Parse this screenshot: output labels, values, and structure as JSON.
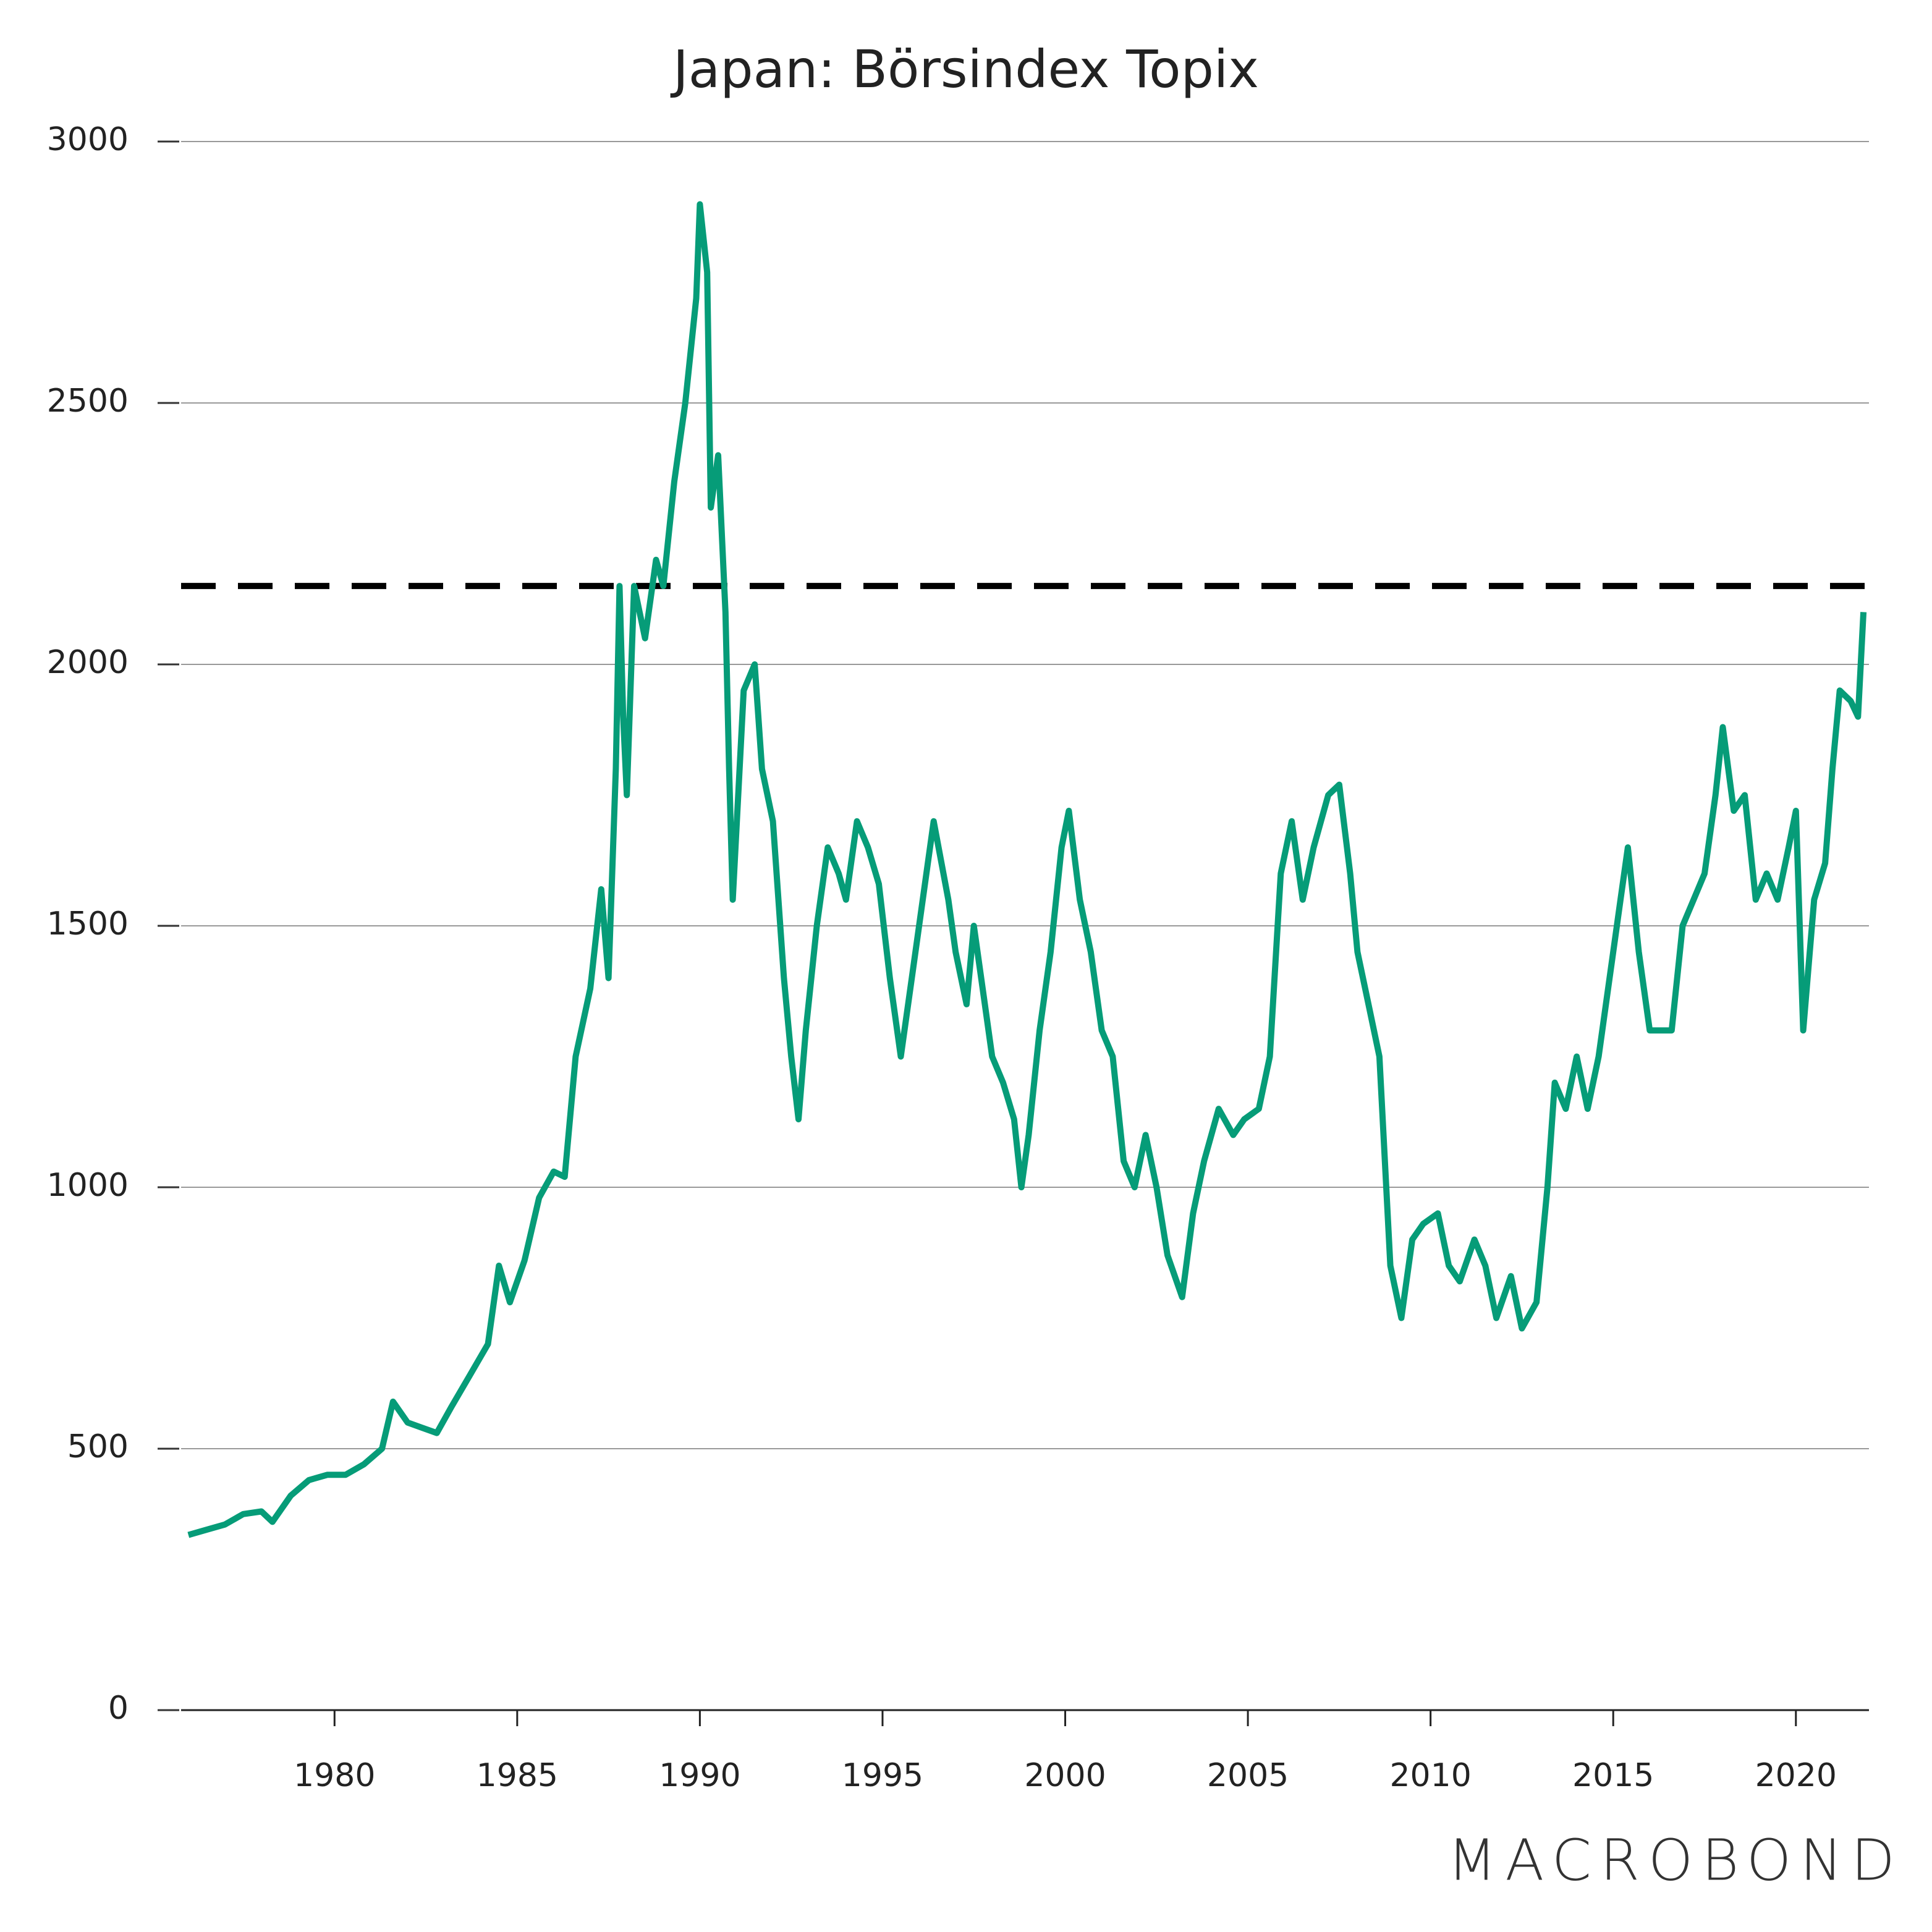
{
  "chart_data": {
    "type": "line",
    "title": "Japan: Börsindex Topix",
    "series": [
      {
        "color": "#069c78",
        "x": [
          1976.0,
          1976.5,
          1977.0,
          1977.5,
          1978.0,
          1978.3,
          1978.8,
          1979.3,
          1979.8,
          1980.3,
          1980.8,
          1981.3,
          1981.6,
          1982.0,
          1982.4,
          1982.8,
          1983.2,
          1983.7,
          1984.2,
          1984.5,
          1984.8,
          1985.2,
          1985.6,
          1986.0,
          1986.3,
          1986.6,
          1987.0,
          1987.3,
          1987.5,
          1987.7,
          1987.8,
          1987.9,
          1988.0,
          1988.2,
          1988.5,
          1988.8,
          1989.0,
          1989.3,
          1989.6,
          1989.9,
          1990.0,
          1990.2,
          1990.3,
          1990.5,
          1990.7,
          1990.8,
          1990.9,
          1991.2,
          1991.5,
          1991.7,
          1992.0,
          1992.3,
          1992.5,
          1992.7,
          1992.9,
          1993.2,
          1993.5,
          1993.8,
          1994.0,
          1994.3,
          1994.6,
          1994.9,
          1995.2,
          1995.5,
          1995.8,
          1996.2,
          1996.4,
          1996.8,
          1997.0,
          1997.3,
          1997.5,
          1997.8,
          1998.0,
          1998.3,
          1998.6,
          1998.8,
          1999.0,
          1999.3,
          1999.6,
          1999.9,
          2000.1,
          2000.4,
          2000.7,
          2001.0,
          2001.3,
          2001.6,
          2001.9,
          2002.2,
          2002.5,
          2002.8,
          2003.2,
          2003.5,
          2003.8,
          2004.2,
          2004.6,
          2004.9,
          2005.3,
          2005.6,
          2005.9,
          2006.2,
          2006.5,
          2006.8,
          2007.2,
          2007.5,
          2007.8,
          2008.0,
          2008.3,
          2008.6,
          2008.9,
          2009.2,
          2009.5,
          2009.8,
          2010.2,
          2010.5,
          2010.8,
          2011.2,
          2011.5,
          2011.8,
          2012.2,
          2012.5,
          2012.9,
          2013.2,
          2013.4,
          2013.7,
          2014.0,
          2014.3,
          2014.6,
          2014.9,
          2015.2,
          2015.4,
          2015.7,
          2016.0,
          2016.3,
          2016.6,
          2016.9,
          2017.2,
          2017.5,
          2017.8,
          2018.0,
          2018.3,
          2018.6,
          2018.9,
          2019.2,
          2019.5,
          2019.8,
          2020.0,
          2020.2,
          2020.5,
          2020.8,
          2021.0,
          2021.2,
          2021.5,
          2021.7,
          2021.85
        ],
        "values": [
          335,
          345,
          355,
          375,
          380,
          360,
          410,
          440,
          450,
          450,
          470,
          500,
          590,
          550,
          540,
          530,
          580,
          640,
          700,
          850,
          780,
          860,
          980,
          1030,
          1020,
          1250,
          1380,
          1570,
          1400,
          1800,
          2150,
          1900,
          1750,
          2150,
          2050,
          2200,
          2150,
          2350,
          2500,
          2700,
          2880,
          2750,
          2300,
          2400,
          2100,
          1800,
          1550,
          1950,
          2000,
          1800,
          1700,
          1400,
          1250,
          1130,
          1300,
          1500,
          1650,
          1600,
          1550,
          1700,
          1650,
          1580,
          1400,
          1250,
          1400,
          1600,
          1700,
          1550,
          1450,
          1350,
          1500,
          1350,
          1250,
          1200,
          1130,
          1000,
          1100,
          1300,
          1450,
          1650,
          1720,
          1550,
          1450,
          1300,
          1250,
          1050,
          1000,
          1100,
          1000,
          870,
          790,
          950,
          1050,
          1150,
          1100,
          1130,
          1150,
          1250,
          1600,
          1700,
          1550,
          1650,
          1750,
          1770,
          1600,
          1450,
          1350,
          1250,
          850,
          750,
          900,
          930,
          950,
          850,
          820,
          900,
          850,
          750,
          830,
          730,
          780,
          1000,
          1200,
          1150,
          1250,
          1150,
          1250,
          1400,
          1550,
          1650,
          1450,
          1300,
          1300,
          1300,
          1500,
          1550,
          1600,
          1750,
          1880,
          1720,
          1750,
          1550,
          1600,
          1550,
          1650,
          1720,
          1300,
          1550,
          1620,
          1800,
          1950,
          1930,
          1900,
          2100
        ]
      }
    ],
    "reference_line": 2150,
    "xlim": [
      1975.8,
      2022.0
    ],
    "xticks": [
      1980,
      1985,
      1990,
      1995,
      2000,
      2005,
      2010,
      2015,
      2020
    ],
    "ylim": [
      0,
      3000
    ],
    "yticks": [
      0,
      500,
      1000,
      1500,
      2000,
      2500,
      3000
    ],
    "grid": true,
    "logo": "MACROBOND"
  }
}
